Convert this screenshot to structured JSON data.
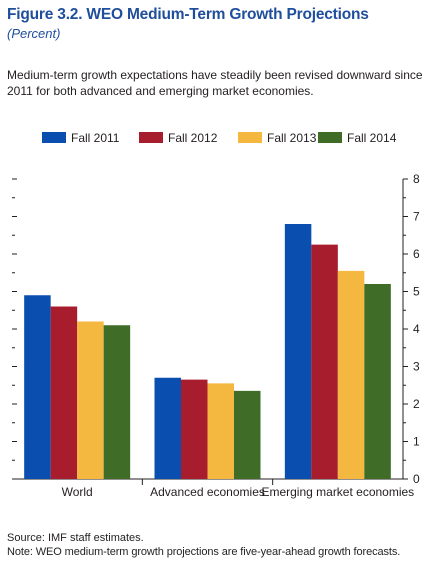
{
  "figure": {
    "title": "Figure 3.2.  WEO Medium-Term Growth Projections",
    "subtitle": "(Percent)",
    "caption": "Medium-term growth expectations have steadily been revised downward since 2011 for both advanced and emerging market economies.",
    "source": "Source: IMF staff estimates.",
    "note": "Note: WEO medium-term growth projections are five-year-ahead growth forecasts."
  },
  "chart_data": {
    "type": "bar",
    "title": "",
    "xlabel": "",
    "ylabel": "",
    "categories": [
      "World",
      "Advanced economies",
      "Emerging market economies"
    ],
    "series": [
      {
        "name": "Fall 2011",
        "color": "#0a4faf",
        "values": [
          4.9,
          2.7,
          6.8
        ]
      },
      {
        "name": "Fall 2012",
        "color": "#a81d2e",
        "values": [
          4.6,
          2.65,
          6.25
        ]
      },
      {
        "name": "Fall 2013",
        "color": "#f4b73f",
        "values": [
          4.2,
          2.55,
          5.55
        ]
      },
      {
        "name": "Fall 2014",
        "color": "#3f6d28",
        "values": [
          4.1,
          2.35,
          5.2
        ]
      }
    ],
    "ylim": [
      0,
      8
    ],
    "yticks": [
      "0",
      "1",
      "2",
      "3",
      "4",
      "5",
      "6",
      "7",
      "8"
    ],
    "axis_side": "right",
    "legend_position": "top",
    "grid": false
  }
}
